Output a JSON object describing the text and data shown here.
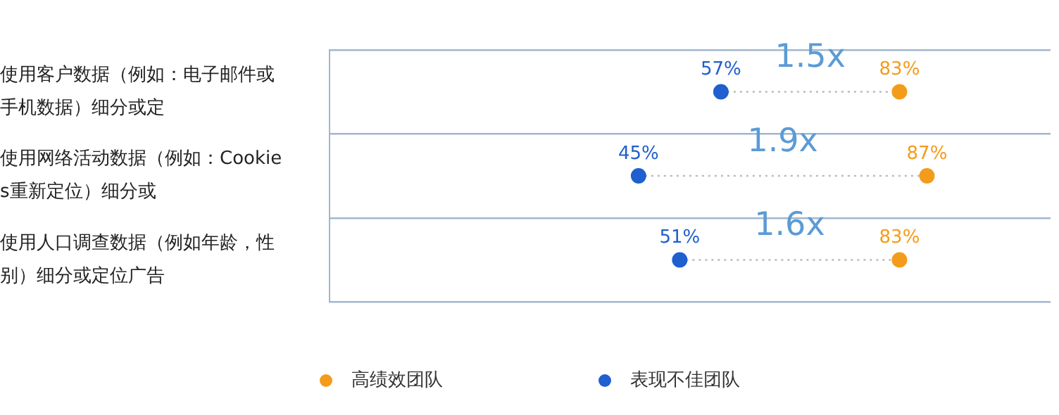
{
  "chart_data": {
    "type": "scatter",
    "orientation": "horizontal",
    "categories": [
      "使用客户数据（例如：电子邮件或手机数据）细分或定",
      "使用网络活动数据（例如：Cookies重新定位）细分或",
      "使用人口调查数据（例如年龄，性别）细分或定位广告"
    ],
    "series": [
      {
        "name": "高绩效团队",
        "color": "#f39c1b",
        "values": [
          83,
          87,
          83
        ],
        "value_labels": [
          "83%",
          "87%",
          "83%"
        ]
      },
      {
        "name": "表现不佳团队",
        "color": "#1f5fcf",
        "values": [
          57,
          45,
          51
        ],
        "value_labels": [
          "57%",
          "45%",
          "51%"
        ]
      }
    ],
    "xlim": [
      0,
      105
    ],
    "tick_labels": "y",
    "marker": "circle",
    "legend": "bottom",
    "annotations": [
      "1.5x",
      "1.9x",
      "1.6x"
    ]
  }
}
